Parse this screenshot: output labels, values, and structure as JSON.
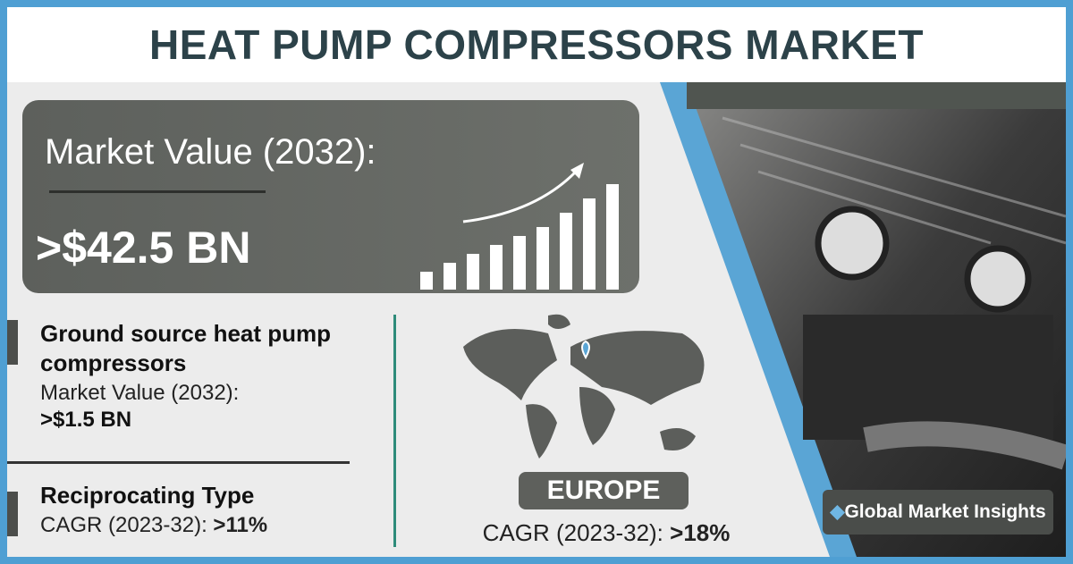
{
  "header": {
    "title": "HEAT PUMP COMPRESSORS MARKET"
  },
  "market_value": {
    "label": "Market Value (2032):",
    "value": ">$42.5 BN"
  },
  "segments": [
    {
      "title": "Ground source heat pump compressors",
      "label": "Market Value (2032):",
      "value": ">$1.5 BN"
    },
    {
      "title": "Reciprocating Type",
      "label": "CAGR (2023-32):",
      "value": ">11%"
    }
  ],
  "region": {
    "name": "EUROPE",
    "label": "CAGR (2023-32):",
    "value": ">18%"
  },
  "brand": "Global Market Insights"
}
